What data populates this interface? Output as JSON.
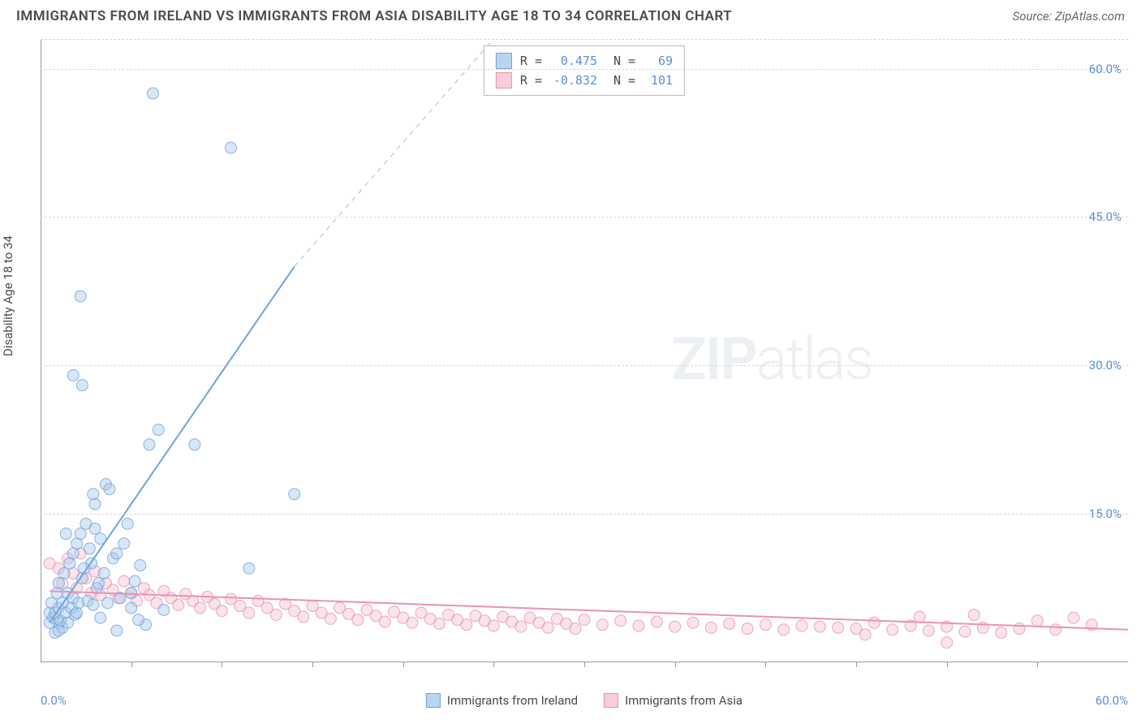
{
  "title": "IMMIGRANTS FROM IRELAND VS IMMIGRANTS FROM ASIA DISABILITY AGE 18 TO 34 CORRELATION CHART",
  "source_label": "Source: ZipAtlas.com",
  "y_axis_label": "Disability Age 18 to 34",
  "watermark": "ZIPatlas",
  "chart": {
    "type": "scatter",
    "xlim": [
      0,
      60
    ],
    "ylim": [
      0,
      63
    ],
    "x_ticks": [
      0,
      60
    ],
    "x_tick_labels": [
      "0.0%",
      "60.0%"
    ],
    "y_ticks": [
      15,
      30,
      45,
      60
    ],
    "y_tick_labels": [
      "15.0%",
      "30.0%",
      "45.0%",
      "60.0%"
    ],
    "background_color": "#ffffff",
    "grid_color": "#d8d8d8",
    "marker_radius": 7,
    "marker_opacity": 0.45,
    "tick_marks_x": [
      5,
      10,
      15,
      20,
      25,
      30,
      35,
      40,
      45,
      50,
      55
    ],
    "series": [
      {
        "name": "Immigrants from Ireland",
        "color_fill": "#a9c8ec",
        "color_stroke": "#6fa3db",
        "swatch_fill": "#b9d3f0",
        "swatch_border": "#6fa3db",
        "R": "0.475",
        "N": "69",
        "trend": {
          "x1": 0.5,
          "y1": 4,
          "x2": 14,
          "y2": 40,
          "dash_to_x": 25,
          "dash_to_y": 63,
          "stroke_width": 2
        },
        "points": [
          [
            0.5,
            4
          ],
          [
            0.5,
            5
          ],
          [
            0.6,
            6
          ],
          [
            0.7,
            4.5
          ],
          [
            0.8,
            3
          ],
          [
            0.8,
            5
          ],
          [
            0.9,
            7
          ],
          [
            1,
            4
          ],
          [
            1,
            5.5
          ],
          [
            1,
            8
          ],
          [
            1.1,
            4.2
          ],
          [
            1.2,
            6
          ],
          [
            1.2,
            3.5
          ],
          [
            1.3,
            9
          ],
          [
            1.4,
            5
          ],
          [
            1.5,
            4
          ],
          [
            1.5,
            7
          ],
          [
            1.6,
            10
          ],
          [
            1.7,
            5.5
          ],
          [
            1.8,
            6.5
          ],
          [
            1.8,
            11
          ],
          [
            1.9,
            4.8
          ],
          [
            2,
            5
          ],
          [
            2,
            12
          ],
          [
            2.1,
            6
          ],
          [
            2.2,
            13
          ],
          [
            2.3,
            8.5
          ],
          [
            2.4,
            9.5
          ],
          [
            2.5,
            14
          ],
          [
            2.6,
            6.2
          ],
          [
            2.7,
            11.5
          ],
          [
            2.8,
            10
          ],
          [
            2.9,
            5.8
          ],
          [
            3,
            13.5
          ],
          [
            3,
            16
          ],
          [
            3.1,
            7.5
          ],
          [
            3.2,
            8
          ],
          [
            3.3,
            12.5
          ],
          [
            3.5,
            9
          ],
          [
            3.6,
            18
          ],
          [
            3.8,
            17.5
          ],
          [
            4,
            10.5
          ],
          [
            4.2,
            11
          ],
          [
            4.4,
            6.5
          ],
          [
            4.6,
            12
          ],
          [
            5,
            7
          ],
          [
            5.2,
            8.2
          ],
          [
            5.5,
            9.8
          ],
          [
            6,
            22
          ],
          [
            5.8,
            3.8
          ],
          [
            6.5,
            23.5
          ],
          [
            6.8,
            5.3
          ],
          [
            8.5,
            22
          ],
          [
            5,
            5.5
          ],
          [
            2.3,
            28
          ],
          [
            6.2,
            57.5
          ],
          [
            2.2,
            37
          ],
          [
            1.8,
            29
          ],
          [
            5.4,
            4.3
          ],
          [
            4.2,
            3.2
          ],
          [
            10.5,
            52
          ],
          [
            11.5,
            9.5
          ],
          [
            14,
            17
          ],
          [
            3.3,
            4.5
          ],
          [
            1.4,
            13
          ],
          [
            1.0,
            3.2
          ],
          [
            2.9,
            17
          ],
          [
            3.7,
            6
          ],
          [
            4.8,
            14
          ]
        ]
      },
      {
        "name": "Immigrants from Asia",
        "color_fill": "#f4c0d0",
        "color_stroke": "#e993b3",
        "swatch_fill": "#f6cdd9",
        "swatch_border": "#e993b3",
        "R": "-0.832",
        "N": "101",
        "trend": {
          "x1": 0.5,
          "y1": 7.2,
          "x2": 60,
          "y2": 3.3,
          "stroke_width": 2
        },
        "points": [
          [
            0.5,
            10
          ],
          [
            1,
            9.5
          ],
          [
            1.2,
            8
          ],
          [
            1.5,
            10.5
          ],
          [
            1.8,
            9
          ],
          [
            2,
            7.5
          ],
          [
            2.2,
            11
          ],
          [
            2.5,
            8.5
          ],
          [
            2.8,
            7
          ],
          [
            3,
            9.2
          ],
          [
            3.3,
            6.8
          ],
          [
            3.6,
            8
          ],
          [
            4,
            7.3
          ],
          [
            4.3,
            6.5
          ],
          [
            4.6,
            8.2
          ],
          [
            5,
            7
          ],
          [
            5.3,
            6.2
          ],
          [
            5.7,
            7.5
          ],
          [
            6,
            6.8
          ],
          [
            6.4,
            6
          ],
          [
            6.8,
            7.2
          ],
          [
            7.2,
            6.5
          ],
          [
            7.6,
            5.8
          ],
          [
            8,
            6.9
          ],
          [
            8.4,
            6.2
          ],
          [
            8.8,
            5.5
          ],
          [
            9.2,
            6.6
          ],
          [
            9.6,
            5.9
          ],
          [
            10,
            5.2
          ],
          [
            10.5,
            6.4
          ],
          [
            11,
            5.7
          ],
          [
            11.5,
            5
          ],
          [
            12,
            6.2
          ],
          [
            12.5,
            5.5
          ],
          [
            13,
            4.8
          ],
          [
            13.5,
            5.9
          ],
          [
            14,
            5.2
          ],
          [
            14.5,
            4.6
          ],
          [
            15,
            5.7
          ],
          [
            15.5,
            5
          ],
          [
            16,
            4.4
          ],
          [
            16.5,
            5.5
          ],
          [
            17,
            4.9
          ],
          [
            17.5,
            4.3
          ],
          [
            18,
            5.3
          ],
          [
            18.5,
            4.7
          ],
          [
            19,
            4.1
          ],
          [
            19.5,
            5.1
          ],
          [
            20,
            4.5
          ],
          [
            20.5,
            4
          ],
          [
            21,
            5
          ],
          [
            21.5,
            4.4
          ],
          [
            22,
            3.9
          ],
          [
            22.5,
            4.8
          ],
          [
            23,
            4.3
          ],
          [
            23.5,
            3.8
          ],
          [
            24,
            4.7
          ],
          [
            24.5,
            4.2
          ],
          [
            25,
            3.7
          ],
          [
            25.5,
            4.6
          ],
          [
            26,
            4.1
          ],
          [
            26.5,
            3.6
          ],
          [
            27,
            4.5
          ],
          [
            27.5,
            4
          ],
          [
            28,
            3.5
          ],
          [
            28.5,
            4.4
          ],
          [
            29,
            3.9
          ],
          [
            29.5,
            3.4
          ],
          [
            30,
            4.3
          ],
          [
            31,
            3.8
          ],
          [
            32,
            4.2
          ],
          [
            33,
            3.7
          ],
          [
            34,
            4.1
          ],
          [
            35,
            3.6
          ],
          [
            36,
            4
          ],
          [
            37,
            3.5
          ],
          [
            38,
            3.9
          ],
          [
            39,
            3.4
          ],
          [
            40,
            3.8
          ],
          [
            41,
            3.3
          ],
          [
            42,
            3.7
          ],
          [
            43,
            3.6
          ],
          [
            44,
            3.5
          ],
          [
            45,
            3.4
          ],
          [
            46,
            4
          ],
          [
            47,
            3.3
          ],
          [
            48,
            3.7
          ],
          [
            49,
            3.2
          ],
          [
            50,
            3.6
          ],
          [
            51,
            3.1
          ],
          [
            52,
            3.5
          ],
          [
            53,
            3
          ],
          [
            54,
            3.4
          ],
          [
            55,
            4.2
          ],
          [
            56,
            3.3
          ],
          [
            50,
            2
          ],
          [
            57,
            4.5
          ],
          [
            58,
            3.8
          ],
          [
            51.5,
            4.8
          ],
          [
            48.5,
            4.6
          ],
          [
            45.5,
            2.8
          ]
        ]
      }
    ]
  },
  "legend": {
    "item1": "Immigrants from Ireland",
    "item2": "Immigrants from Asia"
  },
  "stats_labels": {
    "r": "R =",
    "n": "N ="
  }
}
